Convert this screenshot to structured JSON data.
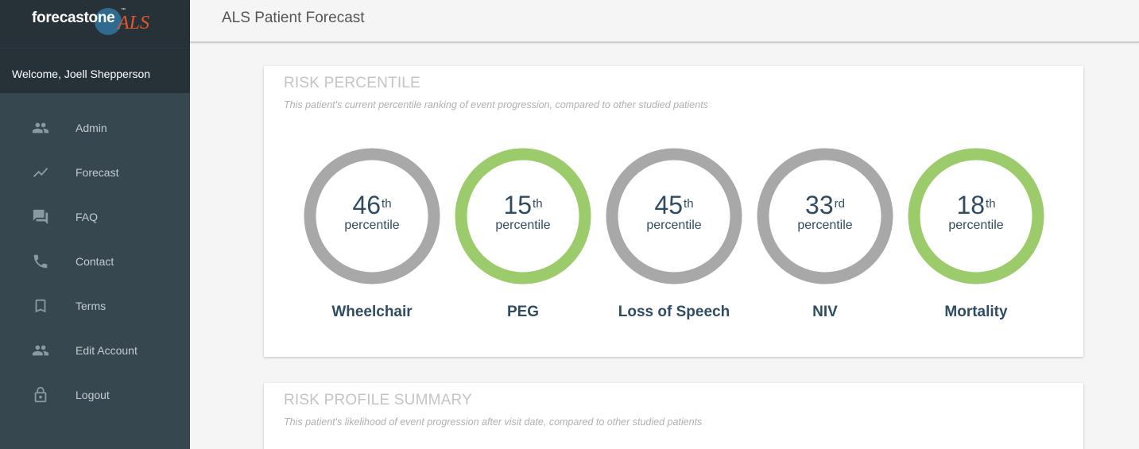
{
  "brand": {
    "name": "forecastone",
    "tm": "™",
    "suffix": "ALS"
  },
  "welcome": "Welcome, Joell Shepperson",
  "nav": [
    {
      "label": "Admin",
      "icon": "people-icon"
    },
    {
      "label": "Forecast",
      "icon": "trending-icon"
    },
    {
      "label": "FAQ",
      "icon": "forum-icon"
    },
    {
      "label": "Contact",
      "icon": "phone-icon"
    },
    {
      "label": "Terms",
      "icon": "bookmark-icon"
    },
    {
      "label": "Edit Account",
      "icon": "people-icon"
    },
    {
      "label": "Logout",
      "icon": "lock-icon"
    }
  ],
  "header": {
    "title": "ALS Patient Forecast"
  },
  "risk_percentile": {
    "title": "RISK PERCENTILE",
    "subtitle": "This patient's current percentile ranking of event progression, compared to other studied patients",
    "items": [
      {
        "value": "46",
        "suffix": "th",
        "unit": "percentile",
        "label": "Wheelchair",
        "color": "#a8a8a8"
      },
      {
        "value": "15",
        "suffix": "th",
        "unit": "percentile",
        "label": "PEG",
        "color": "#9ccb6c"
      },
      {
        "value": "45",
        "suffix": "th",
        "unit": "percentile",
        "label": "Loss of Speech",
        "color": "#a8a8a8"
      },
      {
        "value": "33",
        "suffix": "rd",
        "unit": "percentile",
        "label": "NIV",
        "color": "#a8a8a8"
      },
      {
        "value": "18",
        "suffix": "th",
        "unit": "percentile",
        "label": "Mortality",
        "color": "#9ccb6c"
      }
    ]
  },
  "risk_profile": {
    "title": "RISK PROFILE SUMMARY",
    "subtitle": "This patient's likelihood of event progression after visit date, compared to other studied patients"
  }
}
